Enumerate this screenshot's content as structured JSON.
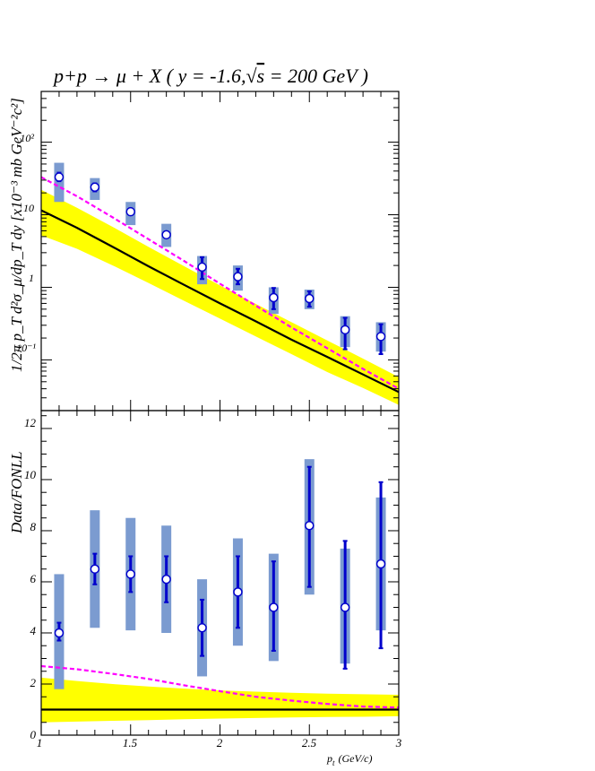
{
  "title": {
    "prefix": "p+p ",
    "arrow": "→",
    "mid": " μ + X ( y = -1.6,",
    "sqrt": "√",
    "s": "s",
    "suffix": " = 200 GeV )"
  },
  "top_panel": {
    "ylabel": "1/2π p",
    "ylabel_full": "1/2π p_T d²σ_μ/dp_T dy [x10⁻³ mb GeV⁻²c²]",
    "ytick_labels": [
      "10²",
      "10",
      "1",
      "10⁻¹"
    ]
  },
  "bottom_panel": {
    "ylabel": "Data/FONLL",
    "ytick_labels": [
      "0",
      "2",
      "4",
      "6",
      "8",
      "10",
      "12"
    ]
  },
  "x_axis": {
    "tick_labels": [
      "1",
      "1.5",
      "2",
      "2.5",
      "3"
    ],
    "label_p": "p",
    "label_sub": "t",
    "label_units": "(GeV/c)"
  },
  "colors": {
    "data": "#0000cc",
    "syst_box": "#7b9bd0",
    "band": "#ffff00",
    "fonll": "#000000",
    "dashed": "#ff00ff"
  },
  "chart_data": [
    {
      "type": "scatter",
      "panel": "top",
      "xlim": [
        1,
        3
      ],
      "ylim": [
        0.02,
        500
      ],
      "log_y": true,
      "series": [
        {
          "x": [
            1.1,
            1.3,
            1.5,
            1.7,
            1.9,
            2.1,
            2.3,
            2.5,
            2.7,
            2.9
          ],
          "y": [
            33,
            24,
            11,
            5.3,
            1.9,
            1.4,
            0.72,
            0.7,
            0.26,
            0.21
          ],
          "stat_lo": [
            29,
            21,
            10,
            4.8,
            1.3,
            1.1,
            0.5,
            0.54,
            0.14,
            0.12
          ],
          "stat_hi": [
            38,
            27,
            12,
            5.8,
            2.6,
            1.8,
            0.98,
            0.88,
            0.38,
            0.31
          ],
          "syst_lo": [
            15,
            16,
            7.2,
            3.6,
            1.1,
            0.9,
            0.43,
            0.5,
            0.15,
            0.13
          ],
          "syst_hi": [
            52,
            32,
            15,
            7.5,
            2.7,
            2.0,
            1.0,
            0.93,
            0.4,
            0.33
          ]
        }
      ],
      "fonll": {
        "x": [
          1.0,
          1.2,
          1.4,
          1.6,
          1.8,
          2.0,
          2.2,
          2.4,
          2.6,
          2.8,
          3.0
        ],
        "central": [
          11.5,
          6.6,
          3.6,
          1.95,
          1.08,
          0.6,
          0.34,
          0.19,
          0.11,
          0.063,
          0.036
        ],
        "band_lo": [
          5.2,
          3.4,
          2.0,
          1.15,
          0.65,
          0.37,
          0.21,
          0.12,
          0.068,
          0.041,
          0.024
        ],
        "band_hi": [
          22,
          12.5,
          6.8,
          3.6,
          1.95,
          1.06,
          0.59,
          0.33,
          0.185,
          0.104,
          0.058
        ],
        "dashed": [
          33,
          18,
          9.2,
          4.6,
          2.3,
          1.12,
          0.56,
          0.28,
          0.145,
          0.075,
          0.04
        ]
      }
    },
    {
      "type": "scatter",
      "panel": "bottom",
      "xlim": [
        1,
        3
      ],
      "ylim": [
        0,
        12.7
      ],
      "series": [
        {
          "x": [
            1.1,
            1.3,
            1.5,
            1.7,
            1.9,
            2.1,
            2.3,
            2.5,
            2.7,
            2.9
          ],
          "y": [
            4.0,
            6.5,
            6.3,
            6.1,
            4.2,
            5.6,
            5.0,
            8.2,
            5.0,
            6.7
          ],
          "stat_lo": [
            3.7,
            5.9,
            5.6,
            5.2,
            3.1,
            4.2,
            3.3,
            5.8,
            2.6,
            3.4
          ],
          "stat_hi": [
            4.4,
            7.1,
            7.0,
            7.0,
            5.3,
            7.0,
            6.8,
            10.5,
            7.6,
            9.9
          ],
          "syst_lo": [
            1.8,
            4.2,
            4.1,
            4.0,
            2.3,
            3.5,
            2.9,
            5.5,
            2.8,
            4.1
          ],
          "syst_hi": [
            6.3,
            8.8,
            8.5,
            8.2,
            6.1,
            7.7,
            7.1,
            10.8,
            7.3,
            9.3
          ]
        }
      ],
      "fonll": {
        "x": [
          1.0,
          1.2,
          1.4,
          1.6,
          1.8,
          2.0,
          2.2,
          2.4,
          2.6,
          2.8,
          3.0
        ],
        "central": [
          1,
          1,
          1,
          1,
          1,
          1,
          1,
          1,
          1,
          1,
          1
        ],
        "band_lo": [
          0.5,
          0.53,
          0.56,
          0.59,
          0.62,
          0.65,
          0.67,
          0.69,
          0.71,
          0.72,
          0.74
        ],
        "band_hi": [
          2.25,
          2.12,
          2.0,
          1.9,
          1.82,
          1.75,
          1.7,
          1.66,
          1.62,
          1.6,
          1.58
        ],
        "dashed": [
          2.7,
          2.58,
          2.4,
          2.2,
          1.95,
          1.72,
          1.5,
          1.35,
          1.22,
          1.12,
          1.08
        ]
      }
    }
  ]
}
